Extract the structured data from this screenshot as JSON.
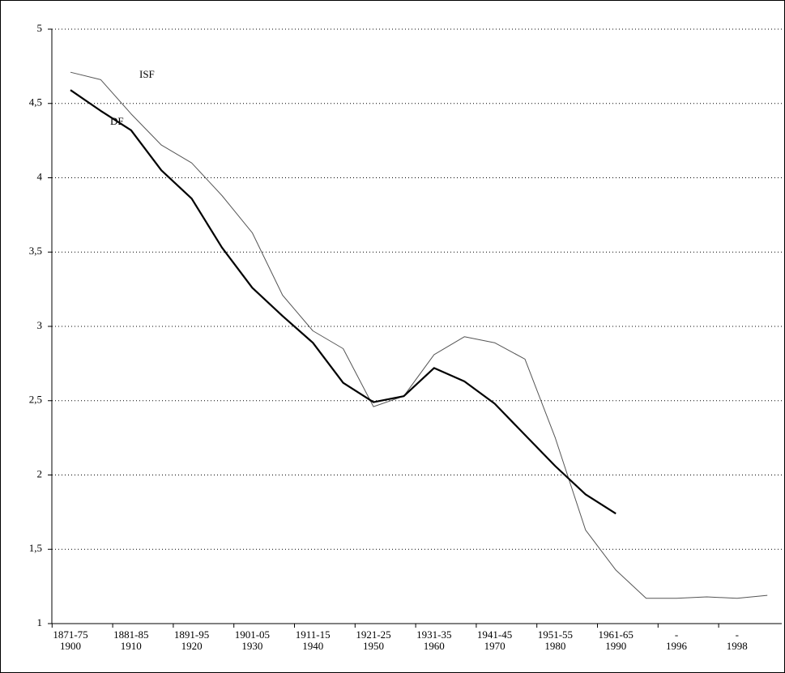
{
  "chart_data": {
    "type": "line",
    "annotations": [
      "ISF",
      "DF"
    ],
    "categories": [
      [
        "1871-75",
        "1900"
      ],
      null,
      [
        "1881-85",
        "1910"
      ],
      null,
      [
        "1891-95",
        "1920"
      ],
      null,
      [
        "1901-05",
        "1930"
      ],
      null,
      [
        "1911-15",
        "1940"
      ],
      null,
      [
        "1921-25",
        "1950"
      ],
      null,
      [
        "1931-35",
        "1960"
      ],
      null,
      [
        "1941-45",
        "1970"
      ],
      null,
      [
        "1951-55",
        "1980"
      ],
      null,
      [
        "1961-65",
        "1990"
      ],
      null,
      [
        "-",
        "1996"
      ],
      null,
      [
        "-",
        "1998"
      ],
      null
    ],
    "series": [
      {
        "name": "ISF",
        "color": "#555555",
        "width": 1,
        "values": [
          4.71,
          4.66,
          4.43,
          4.22,
          4.1,
          3.88,
          3.63,
          3.21,
          2.97,
          2.85,
          2.46,
          2.53,
          2.81,
          2.93,
          2.89,
          2.78,
          2.25,
          1.63,
          1.36,
          1.17,
          1.17,
          1.18,
          1.17,
          1.19
        ]
      },
      {
        "name": "DF",
        "color": "#000000",
        "width": 2.2,
        "values": [
          4.59,
          4.45,
          4.32,
          4.05,
          3.86,
          3.53,
          3.26,
          3.07,
          2.89,
          2.62,
          2.49,
          2.53,
          2.72,
          2.63,
          2.48,
          2.27,
          2.06,
          1.87,
          1.74,
          null,
          null,
          null,
          null,
          null
        ]
      }
    ],
    "ylim": [
      1,
      5
    ],
    "yticks": [
      1,
      {
        "value": 1.5,
        "label": "1,5"
      },
      2,
      {
        "value": 2.5,
        "label": "2,5"
      },
      3,
      {
        "value": 3.5,
        "label": "3,5"
      },
      4,
      {
        "value": 4.5,
        "label": "4,5"
      },
      5
    ],
    "grid": true
  }
}
